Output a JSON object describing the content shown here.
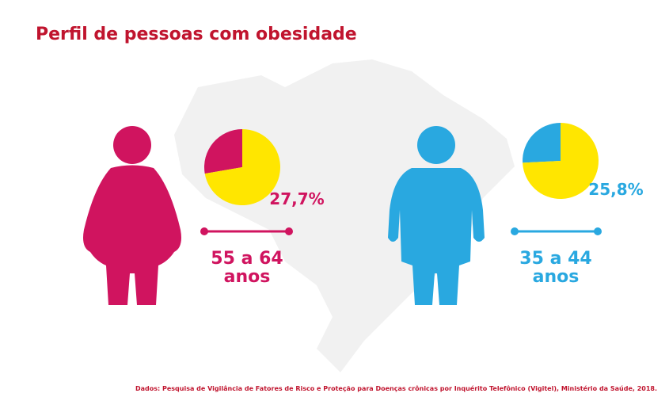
{
  "title": "Perfil de pessoas com obesidade",
  "source": "Dados: Pesquisa de Vigilância de Fatores de Risco e Proteção para Doenças crônicas por Inquérito Telefônico (Vigitel), Ministério da Saúde, 2018.",
  "chart_data": [
    {
      "type": "pie",
      "values": [
        27.7,
        72.3
      ],
      "value_labels": [
        "27,7%",
        null
      ],
      "colors": [
        "#d0145f",
        "#ffe600"
      ],
      "age_range": "55 a 64",
      "age_unit": "anos"
    },
    {
      "type": "pie",
      "values": [
        25.8,
        74.2
      ],
      "value_labels": [
        "25,8%",
        null
      ],
      "colors": [
        "#29a8e0",
        "#ffe600"
      ],
      "age_range": "35 a 44",
      "age_unit": "anos"
    }
  ]
}
